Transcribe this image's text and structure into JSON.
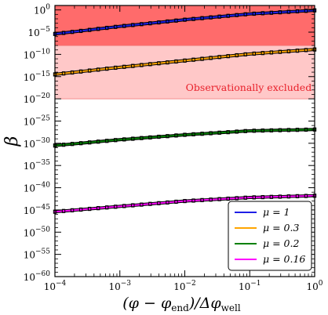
{
  "chart_data": {
    "type": "line",
    "xlabel": "(φ − φ_end)/Δφ_well",
    "xlabel_main": "(φ − φ",
    "xlabel_sub1": "end",
    "xlabel_mid": ")/Δφ",
    "xlabel_sub2": "well",
    "ylabel": "β",
    "xscale": "log",
    "yscale": "log",
    "xlim": [
      0.0001,
      1
    ],
    "ylim": [
      1e-60,
      10.0
    ],
    "x_ticks": [
      {
        "value": 0.0001,
        "base": "10",
        "exp": "−4"
      },
      {
        "value": 0.001,
        "base": "10",
        "exp": "−3"
      },
      {
        "value": 0.01,
        "base": "10",
        "exp": "−2"
      },
      {
        "value": 0.1,
        "base": "10",
        "exp": "−1"
      },
      {
        "value": 1,
        "base": "10",
        "exp": "0"
      }
    ],
    "y_ticks": [
      {
        "value": 1,
        "base": "10",
        "exp": "0"
      },
      {
        "value": 1e-05,
        "base": "10",
        "exp": "−5"
      },
      {
        "value": 1e-10,
        "base": "10",
        "exp": "−10"
      },
      {
        "value": 1e-15,
        "base": "10",
        "exp": "−15"
      },
      {
        "value": 1e-20,
        "base": "10",
        "exp": "−20"
      },
      {
        "value": 1e-25,
        "base": "10",
        "exp": "−25"
      },
      {
        "value": 1e-30,
        "base": "10",
        "exp": "−30"
      },
      {
        "value": 1e-35,
        "base": "10",
        "exp": "−35"
      },
      {
        "value": 1e-40,
        "base": "10",
        "exp": "−40"
      },
      {
        "value": 1e-45,
        "base": "10",
        "exp": "−45"
      },
      {
        "value": 1e-50,
        "base": "10",
        "exp": "−50"
      },
      {
        "value": 1e-55,
        "base": "10",
        "exp": "−55"
      },
      {
        "value": 1e-60,
        "base": "10",
        "exp": "−60"
      }
    ],
    "bands": [
      {
        "ymin": 1e-08,
        "ymax": 10.0,
        "color": "#ff6b6b"
      },
      {
        "ymin": 1e-20,
        "ymax": 1e-08,
        "color": "#ffc8c8"
      }
    ],
    "annotation": {
      "text": "Observationally excluded",
      "x": 0.9,
      "y": 3e-18,
      "color": "#e8202a"
    },
    "series": [
      {
        "name": "μ = 1",
        "label": "μ = 1",
        "color": "#1f1fe6",
        "x": [
          0.0001,
          0.001,
          0.01,
          0.1,
          1
        ],
        "log10_y": [
          -5.4,
          -3.7,
          -2.2,
          -0.9,
          -0.1
        ]
      },
      {
        "name": "μ = 0.3",
        "label": "μ = 0.3",
        "color": "#ffa500",
        "x": [
          0.0001,
          0.001,
          0.01,
          0.1,
          1
        ],
        "log10_y": [
          -14.5,
          -12.9,
          -11.4,
          -9.9,
          -8.9
        ]
      },
      {
        "name": "μ = 0.2",
        "label": "μ = 0.2",
        "color": "#008000",
        "x": [
          0.0001,
          0.001,
          0.01,
          0.1,
          1
        ],
        "log10_y": [
          -30.5,
          -29.2,
          -28.1,
          -27.2,
          -26.9
        ]
      },
      {
        "name": "μ = 0.16",
        "label": "μ = 0.16",
        "color": "#ff00ff",
        "x": [
          0.0001,
          0.001,
          0.01,
          0.1,
          1
        ],
        "log10_y": [
          -45.4,
          -44.2,
          -43.0,
          -42.2,
          -41.8
        ]
      }
    ],
    "legend_position": "lower-right",
    "grid": false
  }
}
